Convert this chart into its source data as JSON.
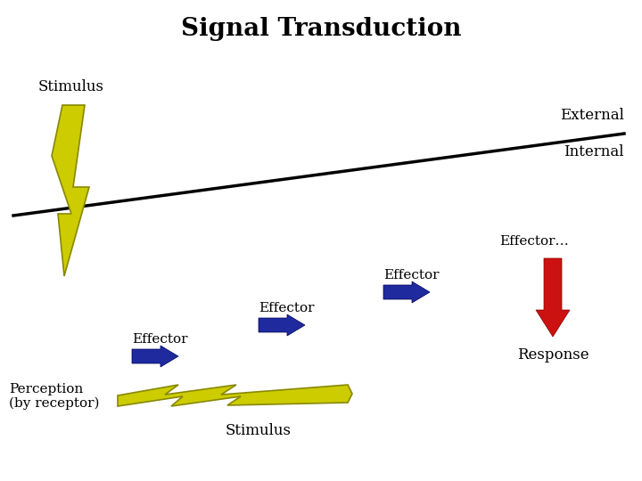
{
  "title": "Signal Transduction",
  "title_fontsize": 20,
  "title_fontweight": "bold",
  "bg_color": "#ffffff",
  "label_external": "External",
  "label_internal": "Internal",
  "label_stimulus_top": "Stimulus",
  "label_stimulus_bottom": "Stimulus",
  "label_perception": "Perception\n(by receptor)",
  "label_effector1": "Effector",
  "label_effector2": "Effector",
  "label_effector3": "Effector",
  "label_effector_dots": "Effector…",
  "label_response": "Response",
  "line_color": "#000000",
  "yellow_color": "#cccc00",
  "yellow_edge": "#888800",
  "blue_arrow_color": "#1e2a9e",
  "red_arrow_color": "#cc1111"
}
